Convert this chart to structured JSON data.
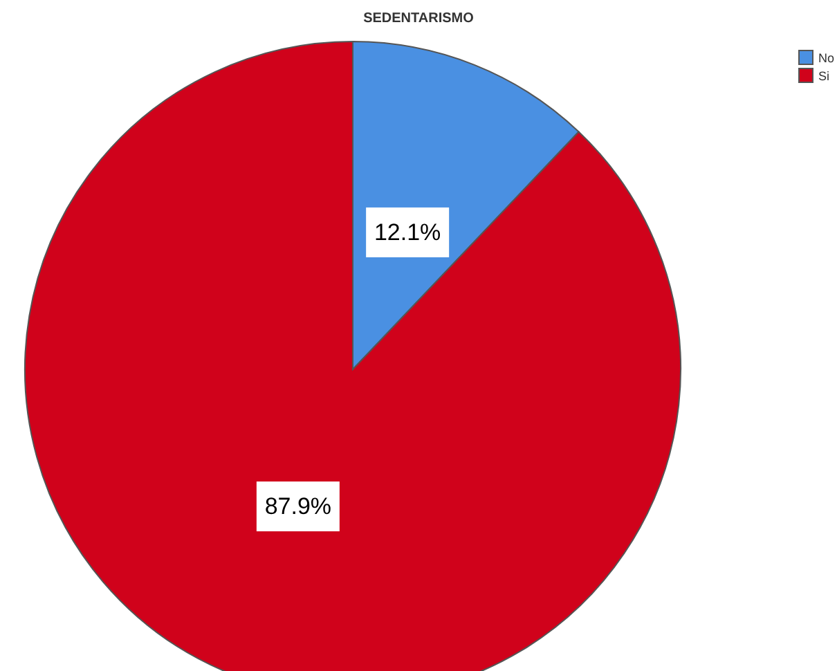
{
  "chart_data": {
    "type": "pie",
    "title": "SEDENTARISMO",
    "categories": [
      "No",
      "Si"
    ],
    "values": [
      12.1,
      87.9
    ],
    "colors": [
      "#4a90e2",
      "#d0021b"
    ],
    "value_labels": [
      "12.1%",
      "87.9%"
    ],
    "legend": "top right"
  }
}
